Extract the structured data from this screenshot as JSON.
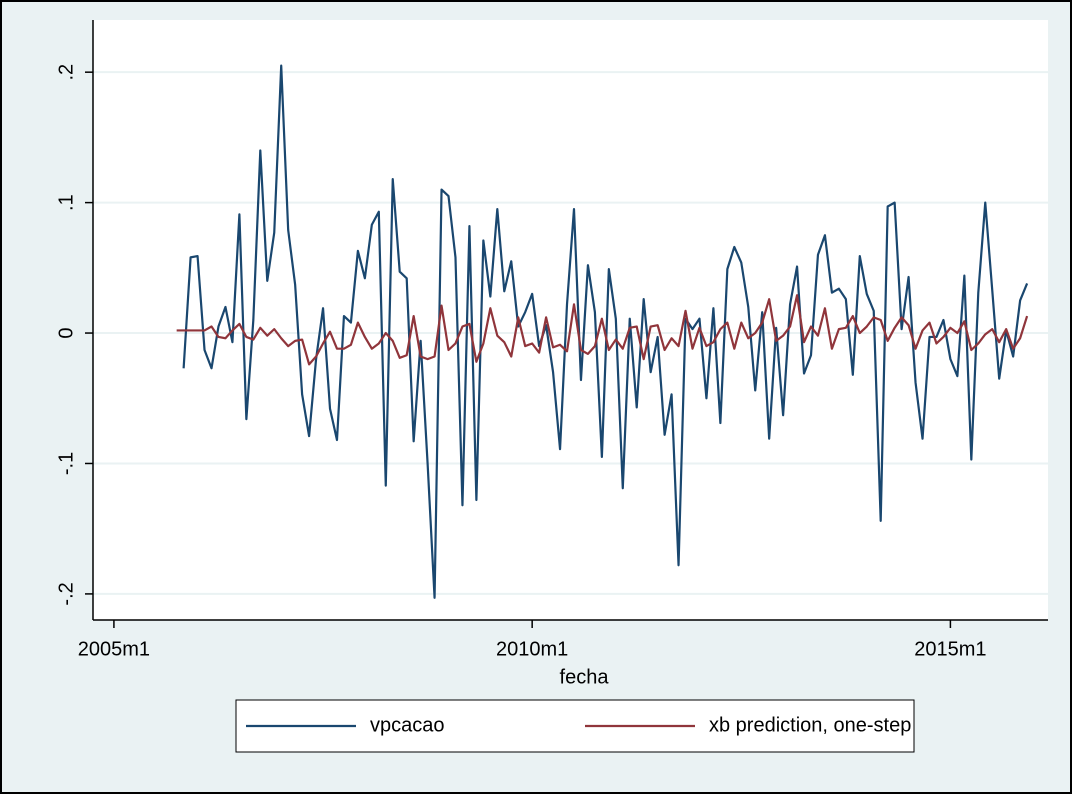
{
  "chart_data": {
    "type": "line",
    "xlabel": "fecha",
    "x": [
      549,
      550,
      551,
      552,
      553,
      554,
      555,
      556,
      557,
      558,
      559,
      560,
      561,
      562,
      563,
      564,
      565,
      566,
      567,
      568,
      569,
      570,
      571,
      572,
      573,
      574,
      575,
      576,
      577,
      578,
      579,
      580,
      581,
      582,
      583,
      584,
      585,
      586,
      587,
      588,
      589,
      590,
      591,
      592,
      593,
      594,
      595,
      596,
      597,
      598,
      599,
      600,
      601,
      602,
      603,
      604,
      605,
      606,
      607,
      608,
      609,
      610,
      611,
      612,
      613,
      614,
      615,
      616,
      617,
      618,
      619,
      620,
      621,
      622,
      623,
      624,
      625,
      626,
      627,
      628,
      629,
      630,
      631,
      632,
      633,
      634,
      635,
      636,
      637,
      638,
      639,
      640,
      641,
      642,
      643,
      644,
      645,
      646,
      647,
      648,
      649,
      650,
      651,
      652,
      653,
      654,
      655,
      656,
      657,
      658,
      659,
      660,
      661,
      662,
      663,
      664,
      665,
      666,
      667,
      668,
      669,
      670,
      671
    ],
    "series": [
      {
        "name": "vpcacao",
        "color": "#1a476f",
        "values": [
          null,
          -0.027,
          0.058,
          0.059,
          -0.013,
          -0.027,
          0.005,
          0.02,
          -0.007,
          0.091,
          -0.066,
          0.01,
          0.14,
          0.04,
          0.077,
          0.205,
          0.079,
          0.037,
          -0.047,
          -0.079,
          -0.02,
          0.019,
          -0.058,
          -0.082,
          0.013,
          0.008,
          0.063,
          0.042,
          0.083,
          0.093,
          -0.117,
          0.118,
          0.047,
          0.042,
          -0.083,
          -0.006,
          -0.1,
          -0.203,
          0.11,
          0.105,
          0.058,
          -0.132,
          0.082,
          -0.128,
          0.071,
          0.028,
          0.095,
          0.032,
          0.055,
          0.005,
          0.016,
          0.03,
          -0.01,
          0.006,
          -0.03,
          -0.089,
          0.022,
          0.095,
          -0.036,
          0.052,
          0.016,
          -0.095,
          0.049,
          0.011,
          -0.119,
          0.011,
          -0.057,
          0.026,
          -0.03,
          -0.003,
          -0.078,
          -0.047,
          -0.178,
          0.011,
          0.003,
          0.011,
          -0.05,
          0.019,
          -0.069,
          0.049,
          0.066,
          0.054,
          0.02,
          -0.044,
          0.016,
          -0.081,
          0.004,
          -0.063,
          0.022,
          0.051,
          -0.031,
          -0.017,
          0.06,
          0.075,
          0.031,
          0.034,
          0.026,
          -0.032,
          0.059,
          0.03,
          0.017,
          -0.144,
          0.097,
          0.1,
          0.003,
          0.043,
          -0.038,
          -0.081,
          -0.003,
          -0.003,
          0.01,
          -0.02,
          -0.033,
          0.044,
          -0.097,
          0.031,
          0.1,
          0.033,
          -0.035,
          0.002,
          -0.018,
          0.025,
          0.038
        ]
      },
      {
        "name": "xb prediction, one-step",
        "color": "#90353b",
        "values": [
          0.002,
          0.002,
          0.002,
          0.002,
          0.002,
          0.005,
          -0.003,
          -0.004,
          0.002,
          0.007,
          -0.003,
          -0.005,
          0.004,
          -0.002,
          0.003,
          -0.004,
          -0.01,
          -0.006,
          -0.005,
          -0.024,
          -0.018,
          -0.008,
          0.001,
          -0.012,
          -0.012,
          -0.009,
          0.008,
          -0.003,
          -0.012,
          -0.008,
          0.0,
          -0.006,
          -0.019,
          -0.017,
          0.013,
          -0.018,
          -0.02,
          -0.018,
          0.021,
          -0.013,
          -0.008,
          0.005,
          0.007,
          -0.022,
          -0.008,
          0.019,
          -0.002,
          -0.007,
          -0.018,
          0.012,
          -0.01,
          -0.008,
          -0.015,
          0.012,
          -0.011,
          -0.009,
          -0.014,
          0.022,
          -0.013,
          -0.016,
          -0.01,
          0.011,
          -0.013,
          -0.005,
          -0.012,
          0.004,
          0.005,
          -0.02,
          0.005,
          0.006,
          -0.013,
          -0.004,
          -0.01,
          0.017,
          -0.012,
          0.004,
          -0.01,
          -0.007,
          0.003,
          0.008,
          -0.012,
          0.008,
          -0.004,
          0.0,
          0.008,
          0.026,
          -0.006,
          -0.002,
          0.005,
          0.029,
          -0.007,
          0.005,
          -0.002,
          0.019,
          -0.012,
          0.003,
          0.004,
          0.013,
          0.0,
          0.005,
          0.012,
          0.01,
          -0.006,
          0.004,
          0.012,
          0.006,
          -0.012,
          0.002,
          0.008,
          -0.008,
          -0.003,
          0.004,
          0.0,
          0.009,
          -0.013,
          -0.008,
          -0.001,
          0.003,
          -0.007,
          0.003,
          -0.012,
          -0.004,
          0.013
        ]
      }
    ],
    "xlim": [
      537,
      674
    ],
    "xticks": [
      {
        "value": 540,
        "label": "2005m1"
      },
      {
        "value": 600,
        "label": "2010m1"
      },
      {
        "value": 660,
        "label": "2015m1"
      }
    ],
    "ylim": [
      -0.22,
      0.24
    ],
    "yticks": [
      {
        "value": -0.2,
        "label": "-.2"
      },
      {
        "value": -0.1,
        "label": "-.1"
      },
      0,
      {
        "value": 0.1,
        "label": ".1"
      },
      {
        "value": 0.2,
        "label": ".2"
      }
    ],
    "grid": true,
    "legend": "bottom"
  }
}
